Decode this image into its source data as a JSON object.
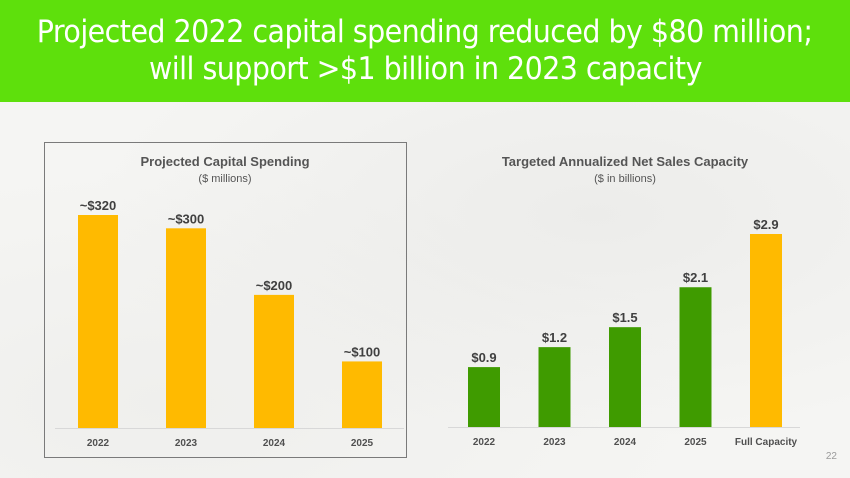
{
  "header": {
    "title_line1": "Projected 2022 capital spending reduced by $80 million;",
    "title_line2": "will support >$1 billion in 2023 capacity"
  },
  "colors": {
    "header_bg": "#5ee00c",
    "bar_orange": "#ffba00",
    "bar_green": "#3f9b00"
  },
  "page_number": "22",
  "chart_data": [
    {
      "type": "bar",
      "title": "Projected Capital Spending",
      "subtitle": "($ millions)",
      "xlabel": "",
      "ylabel": "",
      "categories": [
        "2022",
        "2023",
        "2024",
        "2025"
      ],
      "values": [
        320,
        300,
        200,
        100
      ],
      "data_labels": [
        "~$320",
        "~$300",
        "~$200",
        "~$100"
      ],
      "bar_colors": [
        "#ffba00",
        "#ffba00",
        "#ffba00",
        "#ffba00"
      ],
      "ylim": [
        0,
        320
      ],
      "grid": false,
      "legend": "none",
      "bordered": true
    },
    {
      "type": "bar",
      "title": "Targeted Annualized Net Sales Capacity",
      "subtitle": "($ in billions)",
      "xlabel": "",
      "ylabel": "",
      "categories": [
        "2022",
        "2023",
        "2024",
        "2025",
        "Full Capacity"
      ],
      "values": [
        0.9,
        1.2,
        1.5,
        2.1,
        2.9
      ],
      "data_labels": [
        "$0.9",
        "$1.2",
        "$1.5",
        "$2.1",
        "$2.9"
      ],
      "bar_colors": [
        "#3f9b00",
        "#3f9b00",
        "#3f9b00",
        "#3f9b00",
        "#ffba00"
      ],
      "ylim": [
        0,
        2.9
      ],
      "grid": false,
      "legend": "none",
      "bordered": false
    }
  ]
}
